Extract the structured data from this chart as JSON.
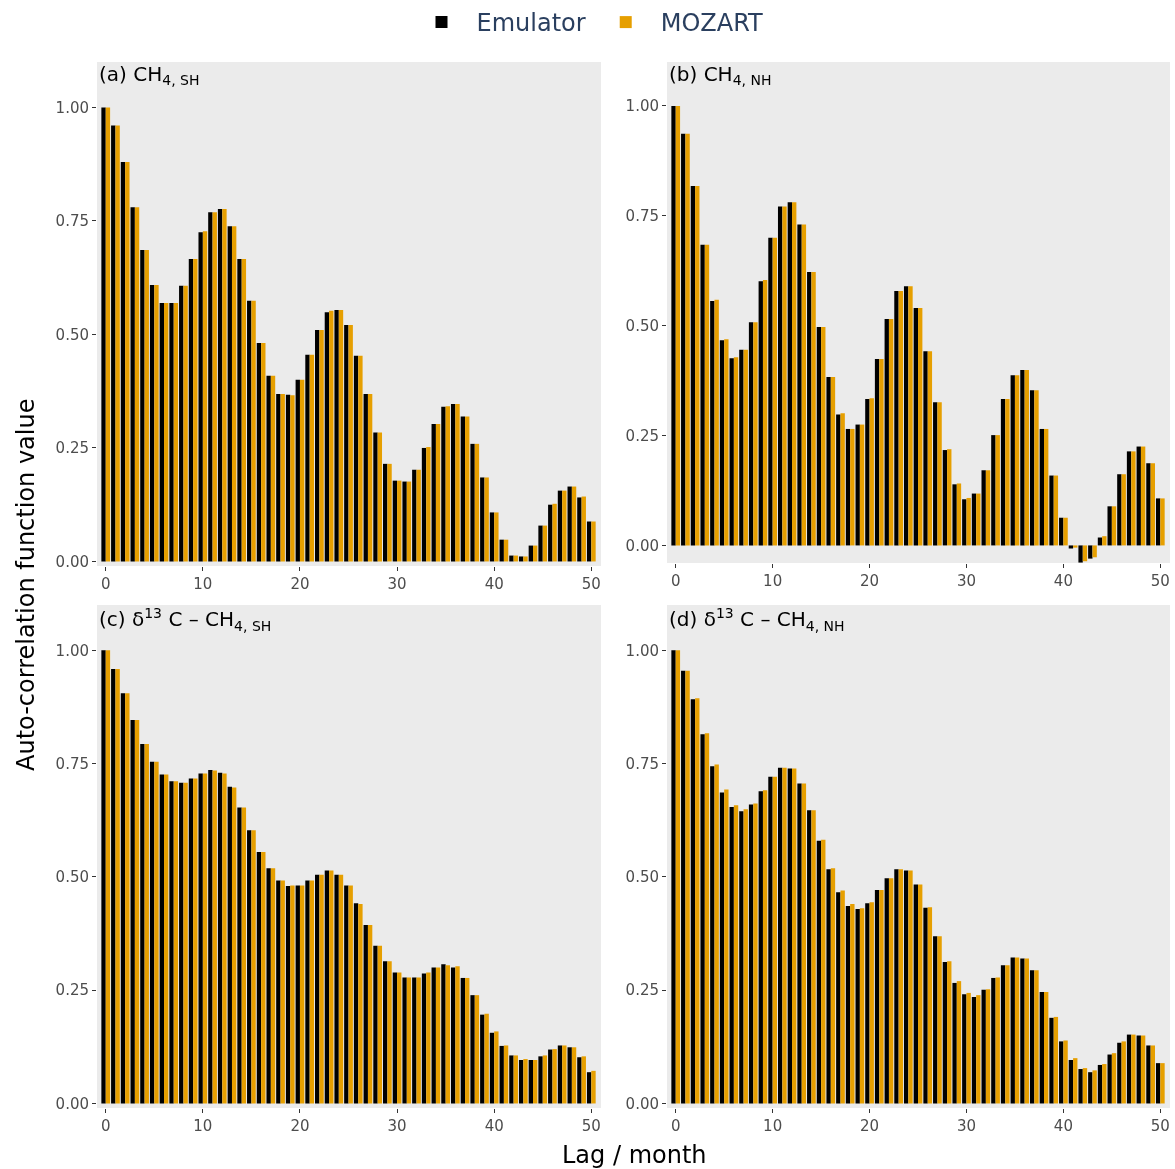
{
  "chart_data": [
    {
      "type": "bar",
      "title": "(a) CH$_{4, SH}$",
      "ylabel": "Auto-correlation function value",
      "legend": "top",
      "x": [
        0,
        1,
        2,
        3,
        4,
        5,
        6,
        7,
        8,
        9,
        10,
        11,
        12,
        13,
        14,
        15,
        16,
        17,
        18,
        19,
        20,
        21,
        22,
        23,
        24,
        25,
        26,
        27,
        28,
        29,
        30,
        31,
        32,
        33,
        34,
        35,
        36,
        37,
        38,
        39,
        40,
        41,
        42,
        43,
        44,
        45,
        46,
        47,
        48,
        49,
        50
      ],
      "series": [
        {
          "name": "Emulator",
          "color": "#000000",
          "values": [
            1.0,
            0.96,
            0.88,
            0.78,
            0.686,
            0.609,
            0.569,
            0.569,
            0.607,
            0.666,
            0.725,
            0.769,
            0.776,
            0.738,
            0.666,
            0.574,
            0.481,
            0.409,
            0.369,
            0.367,
            0.4,
            0.455,
            0.51,
            0.549,
            0.554,
            0.521,
            0.453,
            0.369,
            0.284,
            0.215,
            0.178,
            0.176,
            0.202,
            0.25,
            0.303,
            0.341,
            0.347,
            0.319,
            0.259,
            0.185,
            0.108,
            0.048,
            0.013,
            0.011,
            0.035,
            0.079,
            0.125,
            0.156,
            0.165,
            0.141,
            0.088
          ]
        },
        {
          "name": "MOZART",
          "color": "#e69f00",
          "values": [
            1.0,
            0.96,
            0.88,
            0.78,
            0.686,
            0.609,
            0.569,
            0.569,
            0.607,
            0.666,
            0.727,
            0.769,
            0.776,
            0.738,
            0.666,
            0.574,
            0.481,
            0.409,
            0.369,
            0.366,
            0.4,
            0.455,
            0.51,
            0.552,
            0.554,
            0.521,
            0.453,
            0.369,
            0.284,
            0.215,
            0.178,
            0.176,
            0.202,
            0.252,
            0.303,
            0.342,
            0.347,
            0.319,
            0.259,
            0.185,
            0.108,
            0.048,
            0.013,
            0.011,
            0.035,
            0.079,
            0.127,
            0.156,
            0.165,
            0.143,
            0.088
          ]
        }
      ],
      "xlim": [
        -0.9,
        51
      ],
      "xticks": [
        0,
        10,
        20,
        30,
        40,
        50
      ],
      "ylim": [
        -0.01,
        1.1
      ],
      "yticks": [
        {
          "value": 0,
          "label": "0.00"
        },
        {
          "value": 0.25,
          "label": "0.25"
        },
        {
          "value": 0.5,
          "label": "0.50"
        },
        {
          "value": 0.75,
          "label": "0.75"
        },
        {
          "value": 1,
          "label": "1.00"
        }
      ]
    },
    {
      "type": "bar",
      "title": "(b) CH$_{4, NH}$",
      "x": [
        0,
        1,
        2,
        3,
        4,
        5,
        6,
        7,
        8,
        9,
        10,
        11,
        12,
        13,
        14,
        15,
        16,
        17,
        18,
        19,
        20,
        21,
        22,
        23,
        24,
        25,
        26,
        27,
        28,
        29,
        30,
        31,
        32,
        33,
        34,
        35,
        36,
        37,
        38,
        39,
        40,
        41,
        42,
        43,
        44,
        45,
        46,
        47,
        48,
        49,
        50
      ],
      "series": [
        {
          "name": "Emulator",
          "color": "#000000",
          "values": [
            1.0,
            0.937,
            0.818,
            0.684,
            0.556,
            0.467,
            0.426,
            0.445,
            0.508,
            0.601,
            0.7,
            0.771,
            0.781,
            0.73,
            0.622,
            0.497,
            0.383,
            0.298,
            0.265,
            0.275,
            0.333,
            0.424,
            0.515,
            0.579,
            0.59,
            0.54,
            0.442,
            0.326,
            0.217,
            0.139,
            0.105,
            0.118,
            0.171,
            0.251,
            0.333,
            0.387,
            0.399,
            0.353,
            0.265,
            0.159,
            0.063,
            -0.007,
            -0.039,
            -0.03,
            0.018,
            0.089,
            0.162,
            0.214,
            0.225,
            0.187,
            0.107
          ]
        },
        {
          "name": "MOZART",
          "color": "#e69f00",
          "values": [
            1.0,
            0.937,
            0.818,
            0.684,
            0.559,
            0.469,
            0.428,
            0.445,
            0.508,
            0.604,
            0.7,
            0.771,
            0.781,
            0.73,
            0.622,
            0.497,
            0.383,
            0.301,
            0.265,
            0.275,
            0.335,
            0.424,
            0.515,
            0.579,
            0.59,
            0.54,
            0.442,
            0.326,
            0.219,
            0.141,
            0.108,
            0.118,
            0.171,
            0.251,
            0.333,
            0.387,
            0.399,
            0.353,
            0.265,
            0.159,
            0.063,
            -0.005,
            -0.036,
            -0.027,
            0.021,
            0.089,
            0.162,
            0.214,
            0.225,
            0.187,
            0.107
          ]
        }
      ],
      "xlim": [
        -0.9,
        51
      ],
      "xticks": [
        0,
        10,
        20,
        30,
        40,
        50
      ],
      "ylim": [
        -0.04,
        1.1
      ],
      "yticks": [
        {
          "value": 0,
          "label": "0.00"
        },
        {
          "value": 0.25,
          "label": "0.25"
        },
        {
          "value": 0.5,
          "label": "0.50"
        },
        {
          "value": 0.75,
          "label": "0.75"
        },
        {
          "value": 1,
          "label": "1.00"
        }
      ]
    },
    {
      "type": "bar",
      "title": "(c) δ$^{13}$ C – CH$_{4, SH}$",
      "xlabel": "Lag / month",
      "x": [
        0,
        1,
        2,
        3,
        4,
        5,
        6,
        7,
        8,
        9,
        10,
        11,
        12,
        13,
        14,
        15,
        16,
        17,
        18,
        19,
        20,
        21,
        22,
        23,
        24,
        25,
        26,
        27,
        28,
        29,
        30,
        31,
        32,
        33,
        34,
        35,
        36,
        37,
        38,
        39,
        40,
        41,
        42,
        43,
        44,
        45,
        46,
        47,
        48,
        49,
        50
      ],
      "series": [
        {
          "name": "Emulator",
          "color": "#000000",
          "values": [
            1.0,
            0.959,
            0.905,
            0.846,
            0.793,
            0.754,
            0.726,
            0.711,
            0.708,
            0.717,
            0.728,
            0.736,
            0.73,
            0.699,
            0.653,
            0.603,
            0.555,
            0.519,
            0.492,
            0.48,
            0.481,
            0.492,
            0.505,
            0.514,
            0.505,
            0.481,
            0.442,
            0.394,
            0.348,
            0.314,
            0.289,
            0.278,
            0.278,
            0.287,
            0.3,
            0.307,
            0.3,
            0.277,
            0.239,
            0.196,
            0.156,
            0.127,
            0.106,
            0.096,
            0.096,
            0.104,
            0.119,
            0.128,
            0.124,
            0.102,
            0.069
          ]
        },
        {
          "name": "MOZART",
          "color": "#e69f00",
          "values": [
            1.0,
            0.959,
            0.905,
            0.846,
            0.793,
            0.754,
            0.726,
            0.711,
            0.708,
            0.717,
            0.728,
            0.735,
            0.728,
            0.697,
            0.653,
            0.603,
            0.555,
            0.519,
            0.492,
            0.481,
            0.481,
            0.492,
            0.505,
            0.514,
            0.505,
            0.481,
            0.44,
            0.394,
            0.348,
            0.314,
            0.289,
            0.278,
            0.278,
            0.289,
            0.3,
            0.305,
            0.303,
            0.277,
            0.239,
            0.198,
            0.159,
            0.128,
            0.106,
            0.098,
            0.096,
            0.106,
            0.12,
            0.128,
            0.124,
            0.104,
            0.072
          ]
        }
      ],
      "xlim": [
        -0.9,
        51
      ],
      "xticks": [
        0,
        10,
        20,
        30,
        40,
        50
      ],
      "ylim": [
        -0.01,
        1.1
      ],
      "yticks": [
        {
          "value": 0,
          "label": "0.00"
        },
        {
          "value": 0.25,
          "label": "0.25"
        },
        {
          "value": 0.5,
          "label": "0.50"
        },
        {
          "value": 0.75,
          "label": "0.75"
        },
        {
          "value": 1,
          "label": "1.00"
        }
      ]
    },
    {
      "type": "bar",
      "title": "(d) δ$^{13}$ C – CH$_{4, NH}$",
      "x": [
        0,
        1,
        2,
        3,
        4,
        5,
        6,
        7,
        8,
        9,
        10,
        11,
        12,
        13,
        14,
        15,
        16,
        17,
        18,
        19,
        20,
        21,
        22,
        23,
        24,
        25,
        26,
        27,
        28,
        29,
        30,
        31,
        32,
        33,
        34,
        35,
        36,
        37,
        38,
        39,
        40,
        41,
        42,
        43,
        44,
        45,
        46,
        47,
        48,
        49,
        50
      ],
      "series": [
        {
          "name": "Emulator",
          "color": "#000000",
          "values": [
            1.0,
            0.955,
            0.892,
            0.815,
            0.744,
            0.686,
            0.654,
            0.645,
            0.66,
            0.689,
            0.721,
            0.741,
            0.739,
            0.706,
            0.647,
            0.58,
            0.517,
            0.466,
            0.436,
            0.429,
            0.442,
            0.471,
            0.497,
            0.517,
            0.514,
            0.483,
            0.432,
            0.369,
            0.312,
            0.266,
            0.241,
            0.235,
            0.251,
            0.277,
            0.305,
            0.322,
            0.32,
            0.294,
            0.246,
            0.189,
            0.137,
            0.096,
            0.076,
            0.069,
            0.085,
            0.108,
            0.134,
            0.152,
            0.15,
            0.128,
            0.089
          ]
        },
        {
          "name": "MOZART",
          "color": "#e69f00",
          "values": [
            1.0,
            0.955,
            0.894,
            0.817,
            0.748,
            0.693,
            0.658,
            0.649,
            0.662,
            0.691,
            0.721,
            0.741,
            0.739,
            0.706,
            0.647,
            0.582,
            0.519,
            0.47,
            0.44,
            0.431,
            0.444,
            0.471,
            0.497,
            0.517,
            0.514,
            0.483,
            0.433,
            0.369,
            0.314,
            0.27,
            0.244,
            0.239,
            0.252,
            0.278,
            0.305,
            0.322,
            0.32,
            0.294,
            0.246,
            0.191,
            0.139,
            0.1,
            0.078,
            0.073,
            0.087,
            0.111,
            0.137,
            0.152,
            0.15,
            0.128,
            0.089
          ]
        }
      ],
      "xlim": [
        -0.9,
        51
      ],
      "xticks": [
        0,
        10,
        20,
        30,
        40,
        50
      ],
      "ylim": [
        -0.01,
        1.1
      ],
      "yticks": [
        {
          "value": 0,
          "label": "0.00"
        },
        {
          "value": 0.25,
          "label": "0.25"
        },
        {
          "value": 0.5,
          "label": "0.50"
        },
        {
          "value": 0.75,
          "label": "0.75"
        },
        {
          "value": 1,
          "label": "1.00"
        }
      ]
    }
  ]
}
